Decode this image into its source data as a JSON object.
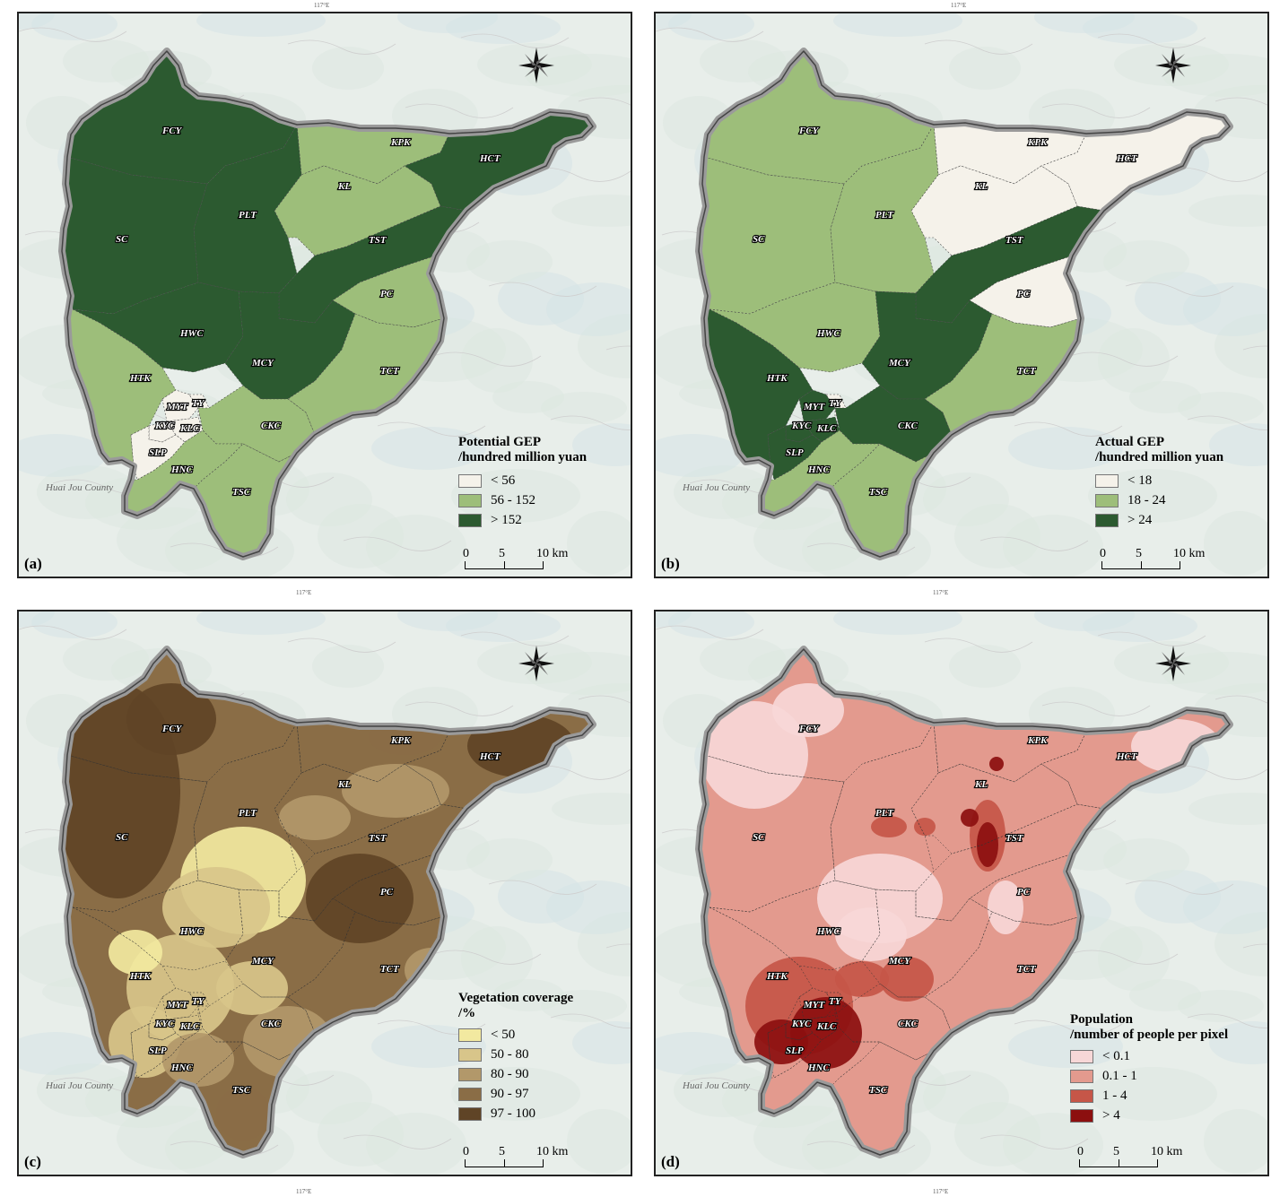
{
  "panels": {
    "a": {
      "label": "(a)",
      "legend_title_1": "Potential GEP",
      "legend_title_2": "/hundred million yuan",
      "classes": [
        {
          "label": "< 56",
          "color": "#f5f2ea"
        },
        {
          "label": "56 - 152",
          "color": "#9dbe7a"
        },
        {
          "label": "> 152",
          "color": "#2c5a30"
        }
      ]
    },
    "b": {
      "label": "(b)",
      "legend_title_1": "Actual GEP",
      "legend_title_2": "/hundred million yuan",
      "classes": [
        {
          "label": "< 18",
          "color": "#f5f2ea"
        },
        {
          "label": "18 - 24",
          "color": "#9dbe7a"
        },
        {
          "label": "> 24",
          "color": "#2c5a30"
        }
      ]
    },
    "c": {
      "label": "(c)",
      "legend_title_1": "Vegetation coverage",
      "legend_title_2": "/%",
      "classes": [
        {
          "label": "< 50",
          "color": "#f2e9a0"
        },
        {
          "label": "50 - 80",
          "color": "#d8c58a"
        },
        {
          "label": "80 - 90",
          "color": "#b2986a"
        },
        {
          "label": "90 - 97",
          "color": "#8a6d46"
        },
        {
          "label": "97 - 100",
          "color": "#5f4426"
        }
      ]
    },
    "d": {
      "label": "(d)",
      "legend_title_1": "Population",
      "legend_title_2": "/number of people per pixel",
      "classes": [
        {
          "label": "< 0.1",
          "color": "#f7d7d7"
        },
        {
          "label": "0.1 - 1",
          "color": "#e39a8e"
        },
        {
          "label": "1 - 4",
          "color": "#c65648"
        },
        {
          "label": "> 4",
          "color": "#8c0f0f"
        }
      ]
    }
  },
  "regions": [
    "FCY",
    "KPK",
    "HCT",
    "KL",
    "SC",
    "PLT",
    "TST",
    "PC",
    "HWC",
    "MCY",
    "TCT",
    "HTK",
    "MYT",
    "TY",
    "KYC",
    "KLC",
    "CKC",
    "SLP",
    "HNC",
    "TSC"
  ],
  "region_classes": {
    "a": {
      "FCY": 2,
      "SC": 2,
      "PLT": 2,
      "HWC": 2,
      "MCY": 2,
      "TST": 2,
      "HCT": 2,
      "KPK": 1,
      "KL": 1,
      "PC": 1,
      "TCT": 1,
      "HTK": 1,
      "CKC": 1,
      "HNC": 1,
      "TSC": 1,
      "MYT": 0,
      "TY": 0,
      "KYC": 0,
      "KLC": 0,
      "SLP": 0
    },
    "b": {
      "FCY": 1,
      "SC": 1,
      "PLT": 1,
      "HWC": 1,
      "TCT": 1,
      "HNC": 1,
      "TSC": 1,
      "KPK": 0,
      "KL": 0,
      "HCT": 0,
      "PC": 0,
      "TY": 0,
      "TST": 2,
      "MCY": 2,
      "CKC": 2,
      "HTK": 2,
      "MYT": 2,
      "KYC": 2,
      "KLC": 2,
      "SLP": 2
    }
  },
  "county_label": "Huai Jou County",
  "scale": {
    "tick0": "0",
    "tick1": "5",
    "tick2": "10 km"
  },
  "top_tick": "117°E",
  "bottom_tick": "117°E",
  "icons": {
    "compass": "compass-rose-icon"
  }
}
